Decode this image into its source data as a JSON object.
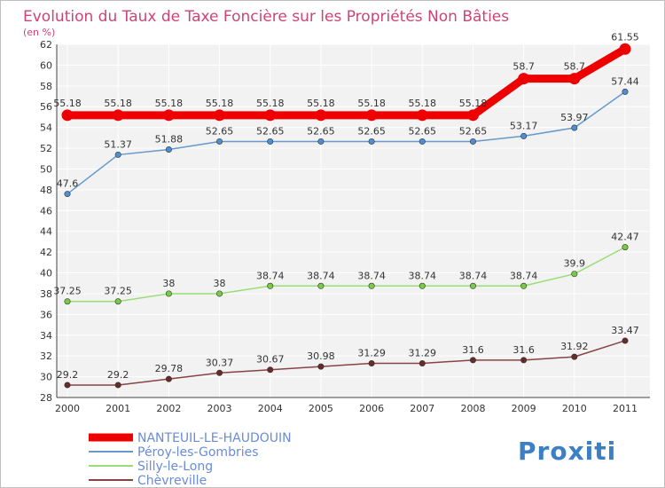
{
  "chart_data": {
    "type": "line",
    "title": "Evolution du Taux de Taxe Foncière sur les Propriétés Non Bâties",
    "unit_label": "(en %)",
    "xlabel": "",
    "ylabel": "",
    "ylim": [
      28,
      62
    ],
    "yticks": [
      28,
      30,
      32,
      34,
      36,
      38,
      40,
      42,
      44,
      46,
      48,
      50,
      52,
      54,
      56,
      58,
      60,
      62
    ],
    "grid": true,
    "legend_position": "bottom-left",
    "x": [
      "2000",
      "2001",
      "2002",
      "2003",
      "2004",
      "2005",
      "2006",
      "2007",
      "2008",
      "2009",
      "2010",
      "2011"
    ],
    "series": [
      {
        "name": "NANTEUIL-LE-HAUDOUIN",
        "color": "#ee0000",
        "thick": true,
        "values": [
          55.18,
          55.18,
          55.18,
          55.18,
          55.18,
          55.18,
          55.18,
          55.18,
          55.18,
          58.7,
          58.7,
          61.55
        ],
        "labels": [
          "55.18",
          "55.18",
          "55.18",
          "55.18",
          "55.18",
          "55.18",
          "55.18",
          "55.18",
          "55.18",
          "58.7",
          "58.7",
          "61.55"
        ]
      },
      {
        "name": "Péroy-les-Gombries",
        "color": "#6699cc",
        "marker": "#4d8fd1",
        "values": [
          47.6,
          51.37,
          51.88,
          52.65,
          52.65,
          52.65,
          52.65,
          52.65,
          52.65,
          53.17,
          53.97,
          57.44
        ],
        "labels": [
          "47.6",
          "51.37",
          "51.88",
          "52.65",
          "52.65",
          "52.65",
          "52.65",
          "52.65",
          "52.65",
          "53.17",
          "53.97",
          "57.44"
        ]
      },
      {
        "name": "Silly-le-Long",
        "color": "#99dd77",
        "marker": "#77cc44",
        "values": [
          37.25,
          37.25,
          38,
          38,
          38.74,
          38.74,
          38.74,
          38.74,
          38.74,
          38.74,
          39.9,
          42.47
        ],
        "labels": [
          "37.25",
          "37.25",
          "38",
          "38",
          "38.74",
          "38.74",
          "38.74",
          "38.74",
          "38.74",
          "38.74",
          "39.9",
          "42.47"
        ]
      },
      {
        "name": "Chèvreville",
        "color": "#884444",
        "marker": "#6b2a2a",
        "values": [
          29.2,
          29.2,
          29.78,
          30.37,
          30.67,
          30.98,
          31.29,
          31.29,
          31.6,
          31.6,
          31.92,
          33.47
        ],
        "labels": [
          "29.2",
          "29.2",
          "29.78",
          "30.37",
          "30.67",
          "30.98",
          "31.29",
          "31.29",
          "31.6",
          "31.6",
          "31.92",
          "33.47"
        ]
      }
    ]
  },
  "branding": {
    "logo_text": "Proxiti"
  }
}
